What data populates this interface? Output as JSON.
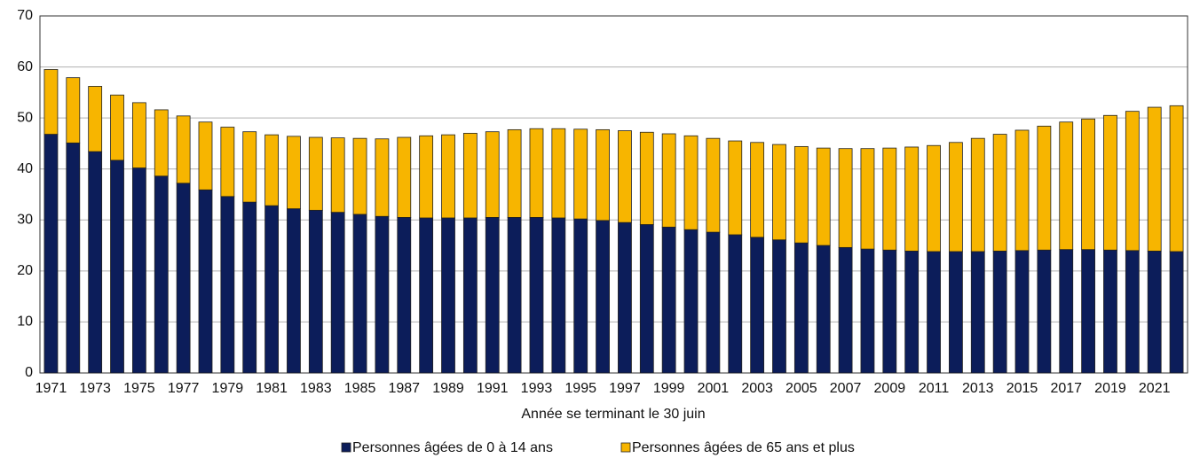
{
  "chart_data": {
    "type": "stacked_bar",
    "x_label": "Année se terminant le 30 juin",
    "categories": [
      "1971",
      null,
      "1973",
      null,
      "1975",
      null,
      "1977",
      null,
      "1979",
      null,
      "1981",
      null,
      "1983",
      null,
      "1985",
      null,
      "1987",
      null,
      "1989",
      null,
      "1991",
      null,
      "1993",
      null,
      "1995",
      null,
      "1997",
      null,
      "1999",
      null,
      "2001",
      null,
      "2003",
      null,
      "2005",
      null,
      "2007",
      null,
      "2009",
      null,
      "2011",
      null,
      "2013",
      null,
      "2015",
      null,
      "2017",
      null,
      "2019",
      null,
      "2021",
      null
    ],
    "series": [
      {
        "name": "Personnes âgées de 0 à 14 ans",
        "color": "#0c1d5a",
        "values": [
          46.8,
          45.1,
          43.4,
          41.7,
          40.2,
          38.6,
          37.2,
          35.9,
          34.6,
          33.5,
          32.8,
          32.2,
          31.9,
          31.5,
          31.1,
          30.7,
          30.5,
          30.4,
          30.4,
          30.4,
          30.5,
          30.5,
          30.5,
          30.4,
          30.2,
          29.9,
          29.5,
          29.1,
          28.6,
          28.1,
          27.6,
          27.1,
          26.6,
          26.1,
          25.5,
          25.0,
          24.6,
          24.3,
          24.1,
          23.9,
          23.8,
          23.8,
          23.8,
          23.9,
          24.0,
          24.1,
          24.2,
          24.2,
          24.1,
          24.0,
          23.9,
          23.8
        ]
      },
      {
        "name": "Personnes âgées de 65 ans et plus",
        "color": "#f7b500",
        "values": [
          12.7,
          12.8,
          12.8,
          12.8,
          12.8,
          13.0,
          13.2,
          13.3,
          13.6,
          13.8,
          13.9,
          14.2,
          14.3,
          14.6,
          14.9,
          15.2,
          15.7,
          16.1,
          16.3,
          16.6,
          16.8,
          17.2,
          17.4,
          17.5,
          17.6,
          17.8,
          18.0,
          18.1,
          18.3,
          18.4,
          18.4,
          18.4,
          18.6,
          18.7,
          18.9,
          19.1,
          19.4,
          19.7,
          20.0,
          20.4,
          20.8,
          21.4,
          22.2,
          22.9,
          23.6,
          24.3,
          25.0,
          25.6,
          26.4,
          27.3,
          28.2,
          28.6
        ]
      }
    ],
    "ylim": [
      0,
      70
    ],
    "yticks": [
      0,
      10,
      20,
      30,
      40,
      50,
      60,
      70
    ],
    "grid": true,
    "legend": "bottom"
  }
}
